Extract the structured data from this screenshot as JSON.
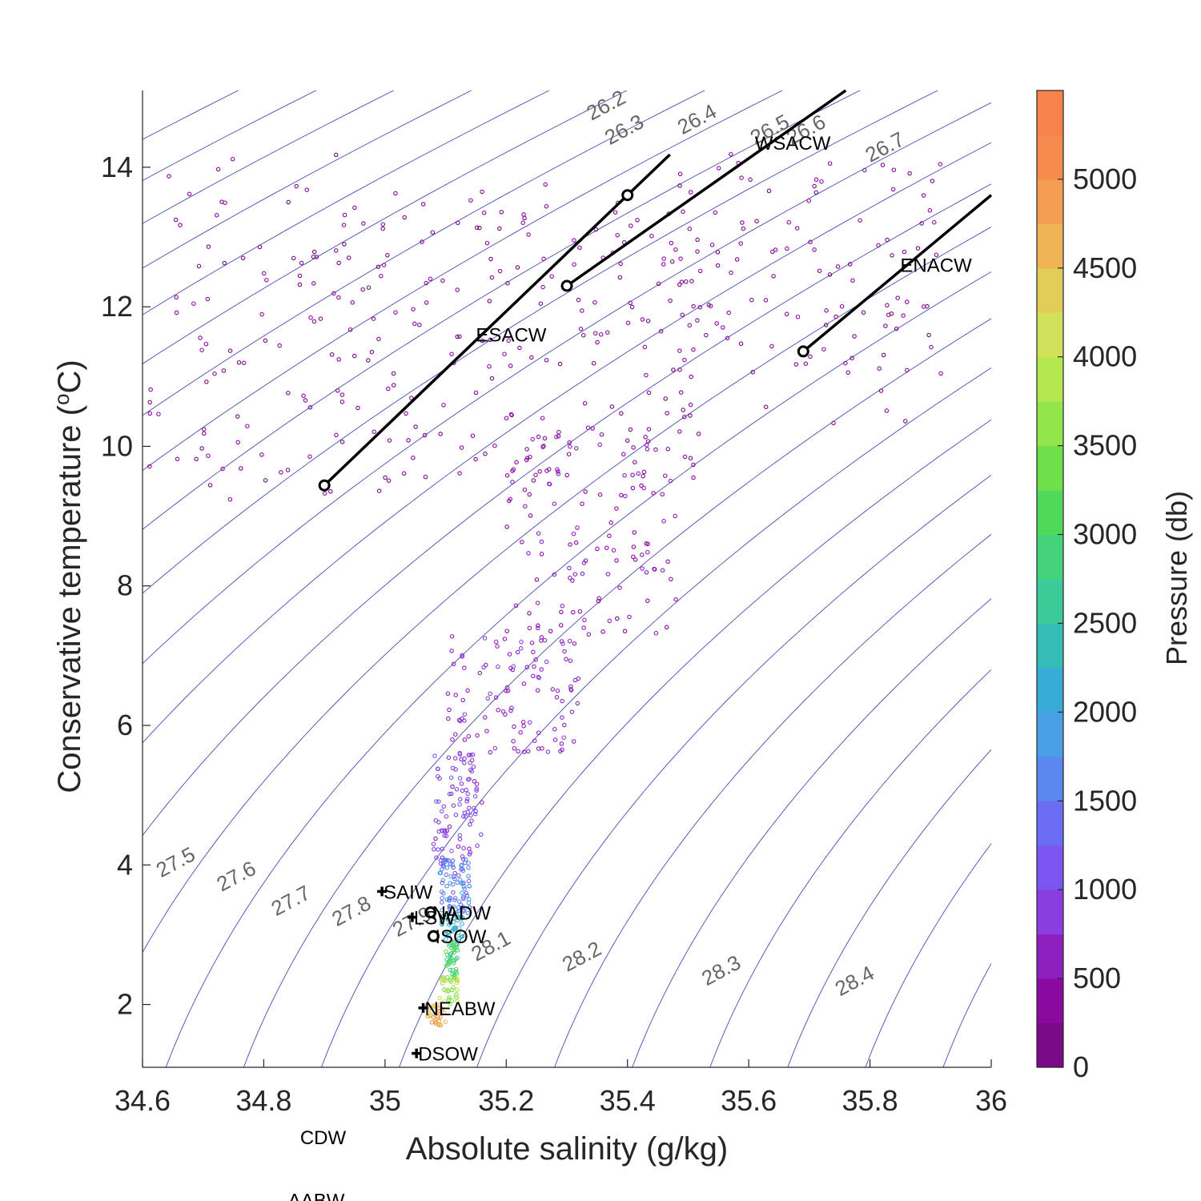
{
  "chart_data": {
    "type": "scatter",
    "title": "",
    "xlabel": "Absolute salinity (g/kg)",
    "ylabel": "Conservative temperature (°C)",
    "ylabel_main": "Conservative temperature (",
    "ylabel_sup": "o",
    "ylabel_end": "C)",
    "xlim": [
      34.6,
      36.0
    ],
    "ylim": [
      1.1,
      15.1
    ],
    "xticks": [
      34.6,
      34.8,
      35.0,
      35.2,
      35.4,
      35.6,
      35.8,
      36.0
    ],
    "xtick_labels": [
      "34.6",
      "34.8",
      "35",
      "35.2",
      "35.4",
      "35.6",
      "35.8",
      "36"
    ],
    "yticks": [
      2,
      4,
      6,
      8,
      10,
      12,
      14
    ],
    "ytick_labels": [
      "2",
      "4",
      "6",
      "8",
      "10",
      "12",
      "14"
    ],
    "grid": false,
    "colorbar": {
      "label": "Pressure (db)",
      "range": [
        0,
        5500
      ],
      "ticks": [
        0,
        500,
        1000,
        1500,
        2000,
        2500,
        3000,
        3500,
        4000,
        4500,
        5000
      ],
      "tick_labels": [
        "0",
        "500",
        "1000",
        "1500",
        "2000",
        "2500",
        "3000",
        "3500",
        "4000",
        "4500",
        "5000"
      ],
      "colors": [
        "#7a0a87",
        "#8a0aa0",
        "#8f20c0",
        "#8a3ee0",
        "#7b55f0",
        "#6b6ef5",
        "#5a88ee",
        "#4a9ee5",
        "#38acd6",
        "#34bcb6",
        "#3cca98",
        "#44d27a",
        "#4fd95a",
        "#6fe04a",
        "#92e54a",
        "#b5e750",
        "#d1e05a",
        "#e2cc5a",
        "#eeb456",
        "#f39e52",
        "#f58c4e",
        "#f7824c"
      ]
    },
    "isopycnals": {
      "values": [
        26.0,
        26.1,
        26.2,
        26.3,
        26.4,
        26.5,
        26.6,
        26.7,
        26.8,
        26.9,
        27.0,
        27.1,
        27.2,
        27.3,
        27.4,
        27.5,
        27.6,
        27.7,
        27.8,
        27.9,
        28.0,
        28.1,
        28.2,
        28.3,
        28.4
      ],
      "labeled": [
        {
          "text": "26.2",
          "S": 35.37,
          "T": 14.8
        },
        {
          "text": "26.3",
          "S": 35.4,
          "T": 14.45
        },
        {
          "text": "26.4",
          "S": 35.52,
          "T": 14.6
        },
        {
          "text": "26.5",
          "S": 35.64,
          "T": 14.45
        },
        {
          "text": "26.6",
          "S": 35.7,
          "T": 14.45
        },
        {
          "text": "26.7",
          "S": 35.83,
          "T": 14.2
        },
        {
          "text": "27.5",
          "S": 34.66,
          "T": 3.95
        },
        {
          "text": "27.6",
          "S": 34.76,
          "T": 3.75
        },
        {
          "text": "27.7",
          "S": 34.85,
          "T": 3.4
        },
        {
          "text": "27.8",
          "S": 34.95,
          "T": 3.25
        },
        {
          "text": "27.9",
          "S": 35.05,
          "T": 3.1
        },
        {
          "text": "28.1",
          "S": 35.18,
          "T": 2.75
        },
        {
          "text": "28.2",
          "S": 35.33,
          "T": 2.6
        },
        {
          "text": "28.3",
          "S": 35.56,
          "T": 2.4
        },
        {
          "text": "28.4",
          "S": 35.78,
          "T": 2.25
        }
      ]
    },
    "water_mass_lines": [
      {
        "name": "ESACW",
        "S": [
          34.9,
          35.4
        ],
        "T": [
          9.44,
          13.6
        ],
        "line_ext_S": 35.47,
        "label_S": 35.15,
        "label_T": 11.5
      },
      {
        "name": "WSACW",
        "S": [
          35.3,
          35.7
        ],
        "T": [
          12.3,
          15.1
        ],
        "line_ext_S": 35.76,
        "label_S": 35.61,
        "label_T": 14.25
      },
      {
        "name": "ENACW",
        "S": [
          35.69,
          36.0
        ],
        "T": [
          11.36,
          13.6
        ],
        "line_ext_S": 36.0,
        "label_S": 35.85,
        "label_T": 12.5
      }
    ],
    "water_mass_points": [
      {
        "name": "SAIW",
        "S": 34.995,
        "T": 3.62,
        "marker": "plus"
      },
      {
        "name": "LSW",
        "S": 35.045,
        "T": 3.25,
        "marker": "plus"
      },
      {
        "name": "NADW",
        "S": 35.075,
        "T": 3.32,
        "marker": "circle"
      },
      {
        "name": "ISOW",
        "S": 35.08,
        "T": 2.98,
        "marker": "circle"
      },
      {
        "name": "NEABW",
        "S": 35.063,
        "T": 1.95,
        "marker": "plus"
      },
      {
        "name": "DSOW",
        "S": 35.052,
        "T": 1.3,
        "marker": "plus"
      },
      {
        "name": "CDW",
        "S": 34.86,
        "T": -0.0,
        "marker": "none"
      },
      {
        "name": "AABW",
        "S": 34.84,
        "T": -0.9,
        "marker": "none"
      }
    ],
    "scatter_groups": [
      {
        "S_range": [
          34.61,
          35.0
        ],
        "T_range": [
          9.2,
          14.2
        ],
        "p_range": [
          100,
          400
        ],
        "n": 110
      },
      {
        "S_range": [
          35.0,
          35.55
        ],
        "T_range": [
          9.5,
          13.8
        ],
        "p_range": [
          100,
          450
        ],
        "n": 160
      },
      {
        "S_range": [
          35.45,
          35.93
        ],
        "T_range": [
          10.3,
          14.2
        ],
        "p_range": [
          100,
          400
        ],
        "n": 120
      },
      {
        "S_range": [
          35.2,
          35.48
        ],
        "T_range": [
          7.3,
          10.3
        ],
        "p_range": [
          300,
          650
        ],
        "n": 130
      },
      {
        "S_range": [
          35.1,
          35.32
        ],
        "T_range": [
          5.6,
          7.3
        ],
        "p_range": [
          550,
          800
        ],
        "n": 110
      },
      {
        "S_range": [
          35.08,
          35.16
        ],
        "T_range": [
          4.1,
          5.6
        ],
        "p_range": [
          700,
          1100
        ],
        "n": 90
      },
      {
        "S_range": [
          35.09,
          35.14
        ],
        "T_range": [
          3.3,
          4.1
        ],
        "p_range": [
          1100,
          1900
        ],
        "n": 90
      },
      {
        "S_range": [
          35.09,
          35.13
        ],
        "T_range": [
          2.9,
          3.3
        ],
        "p_range": [
          1900,
          2600
        ],
        "n": 40
      },
      {
        "S_range": [
          35.1,
          35.12
        ],
        "T_range": [
          2.4,
          2.9
        ],
        "p_range": [
          2600,
          3300
        ],
        "n": 40
      },
      {
        "S_range": [
          35.09,
          35.12
        ],
        "T_range": [
          2.0,
          2.4
        ],
        "p_range": [
          3300,
          4300
        ],
        "n": 35
      },
      {
        "S_range": [
          35.07,
          35.1
        ],
        "T_range": [
          1.7,
          2.0
        ],
        "p_range": [
          4300,
          5300
        ],
        "n": 30
      }
    ]
  }
}
